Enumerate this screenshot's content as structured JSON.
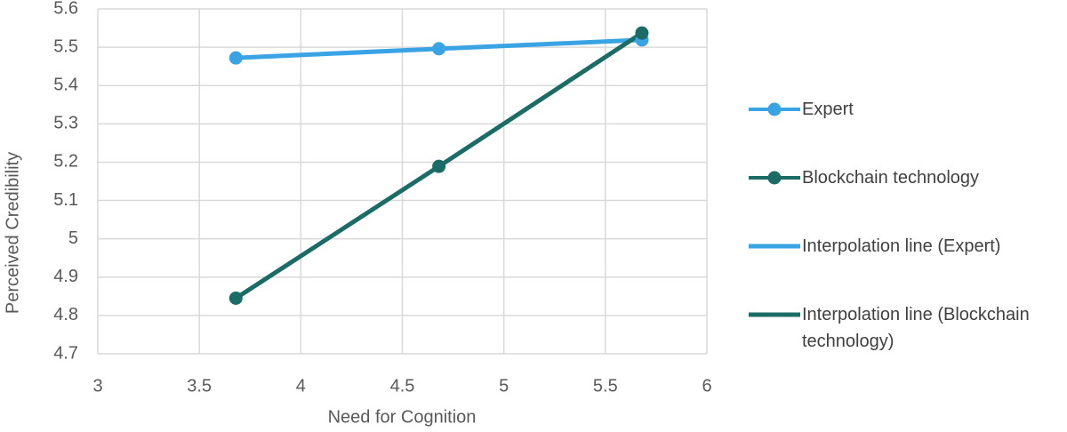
{
  "chart_data": {
    "type": "line",
    "x_label": "Need for Cognition",
    "y_label": "Perceived Credibility",
    "x": [
      3.68,
      4.68,
      5.68
    ],
    "series": [
      {
        "name": "Expert",
        "color": "#3aa3e3",
        "values": [
          5.472,
          5.496,
          5.519
        ],
        "marker": true,
        "line": false
      },
      {
        "name": "Blockchain technology",
        "color": "#1b6b66",
        "values": [
          4.845,
          5.189,
          5.537
        ],
        "marker": true,
        "line": false
      },
      {
        "name": "Interpolation line (Expert)",
        "color": "#3aa3e3",
        "values": [
          5.472,
          5.496,
          5.519
        ],
        "marker": false,
        "line": true
      },
      {
        "name": "Interpolation line (Blockchain technology)",
        "color": "#1b6b66",
        "values": [
          4.845,
          5.189,
          5.537
        ],
        "marker": false,
        "line": true
      }
    ],
    "xlim": [
      3,
      6
    ],
    "xticks": [
      3,
      3.5,
      4,
      4.5,
      5,
      5.5,
      6
    ],
    "ylim": [
      4.7,
      5.6
    ],
    "yticks": [
      4.7,
      4.8,
      4.9,
      5,
      5.1,
      5.2,
      5.3,
      5.4,
      5.5,
      5.6
    ],
    "grid": true,
    "legend": "right"
  }
}
